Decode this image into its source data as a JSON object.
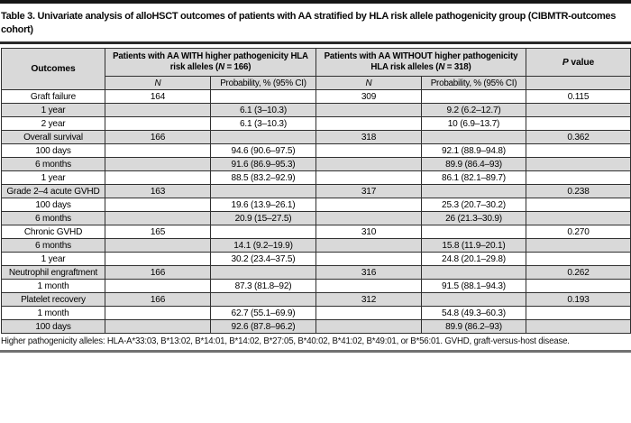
{
  "title": "Table 3. Univariate analysis of alloHSCT outcomes of patients with AA stratified by HLA risk allele pathogenicity group (CIBMTR-outcomes cohort)",
  "footnote": "Higher pathogenicity alleles: HLA-A*33:03, B*13:02, B*14:01, B*14:02, B*27:05, B*40:02, B*41:02, B*49:01, or B*56:01. GVHD, graft-versus-host disease.",
  "colors": {
    "header_bg": "#d9d9d9",
    "shaded_row": "#d9d9d9",
    "border": "#303030",
    "top_bar": "#161616",
    "rule": "#2b2b2b",
    "bottom_rule": "#707070",
    "text": "#000000"
  },
  "table": {
    "header": {
      "outcomes": "Outcomes",
      "group1": {
        "pre": "Patients with AA WITH higher pathogenicity HLA risk alleles (",
        "n": "N",
        "post": " = 166)"
      },
      "group2": {
        "pre": "Patients with AA WITHOUT higher pathogenicity HLA risk alleles (",
        "n": "N",
        "post": " = 318)"
      },
      "n_label": "N",
      "prob_label": "Probability, % (95% CI)",
      "p_italic": "P",
      "p_rest": " value"
    },
    "rows": [
      {
        "outcome": "Graft failure",
        "n1": "164",
        "p1": "",
        "n2": "309",
        "p2": "",
        "pv": "0.115"
      },
      {
        "outcome": "1 year",
        "n1": "",
        "p1": "6.1 (3–10.3)",
        "n2": "",
        "p2": "9.2 (6.2–12.7)",
        "pv": ""
      },
      {
        "outcome": "2 year",
        "n1": "",
        "p1": "6.1 (3–10.3)",
        "n2": "",
        "p2": "10 (6.9–13.7)",
        "pv": ""
      },
      {
        "outcome": "Overall survival",
        "n1": "166",
        "p1": "",
        "n2": "318",
        "p2": "",
        "pv": "0.362"
      },
      {
        "outcome": "100 days",
        "n1": "",
        "p1": "94.6 (90.6–97.5)",
        "n2": "",
        "p2": "92.1 (88.9–94.8)",
        "pv": ""
      },
      {
        "outcome": "6 months",
        "n1": "",
        "p1": "91.6 (86.9–95.3)",
        "n2": "",
        "p2": "89.9 (86.4–93)",
        "pv": ""
      },
      {
        "outcome": "1 year",
        "n1": "",
        "p1": "88.5 (83.2–92.9)",
        "n2": "",
        "p2": "86.1 (82.1–89.7)",
        "pv": ""
      },
      {
        "outcome": "Grade 2–4 acute GVHD",
        "n1": "163",
        "p1": "",
        "n2": "317",
        "p2": "",
        "pv": "0.238"
      },
      {
        "outcome": "100 days",
        "n1": "",
        "p1": "19.6 (13.9–26.1)",
        "n2": "",
        "p2": "25.3 (20.7–30.2)",
        "pv": ""
      },
      {
        "outcome": "6 months",
        "n1": "",
        "p1": "20.9 (15–27.5)",
        "n2": "",
        "p2": "26 (21.3–30.9)",
        "pv": ""
      },
      {
        "outcome": "Chronic GVHD",
        "n1": "165",
        "p1": "",
        "n2": "310",
        "p2": "",
        "pv": "0.270"
      },
      {
        "outcome": "6 months",
        "n1": "",
        "p1": "14.1 (9.2–19.9)",
        "n2": "",
        "p2": "15.8 (11.9–20.1)",
        "pv": ""
      },
      {
        "outcome": "1 year",
        "n1": "",
        "p1": "30.2 (23.4–37.5)",
        "n2": "",
        "p2": "24.8 (20.1–29.8)",
        "pv": ""
      },
      {
        "outcome": "Neutrophil engraftment",
        "n1": "166",
        "p1": "",
        "n2": "316",
        "p2": "",
        "pv": "0.262"
      },
      {
        "outcome": "1 month",
        "n1": "",
        "p1": "87.3 (81.8–92)",
        "n2": "",
        "p2": "91.5 (88.1–94.3)",
        "pv": ""
      },
      {
        "outcome": "Platelet recovery",
        "n1": "166",
        "p1": "",
        "n2": "312",
        "p2": "",
        "pv": "0.193"
      },
      {
        "outcome": "1 month",
        "n1": "",
        "p1": "62.7 (55.1–69.9)",
        "n2": "",
        "p2": "54.8 (49.3–60.3)",
        "pv": ""
      },
      {
        "outcome": "100 days",
        "n1": "",
        "p1": "92.6 (87.8–96.2)",
        "n2": "",
        "p2": "89.9 (86.2–93)",
        "pv": ""
      }
    ]
  }
}
